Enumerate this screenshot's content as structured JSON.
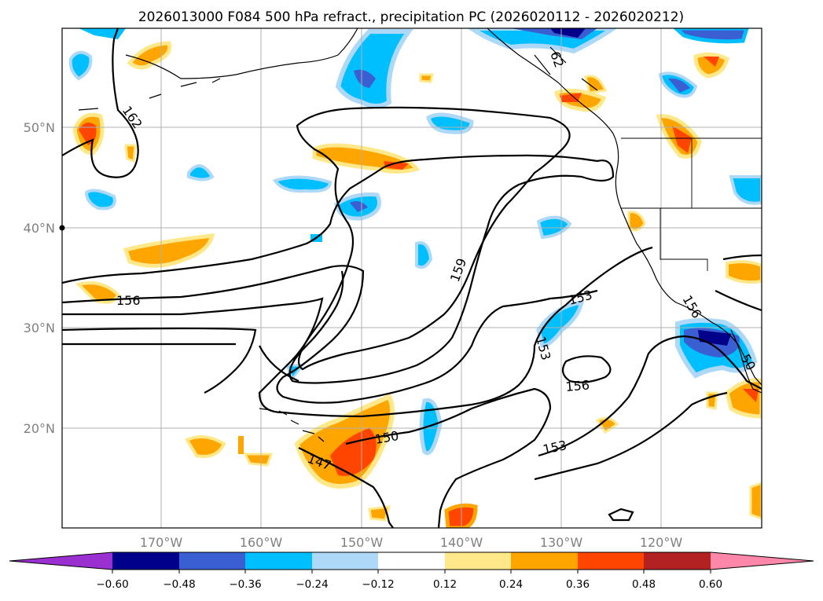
{
  "title": "2026013000 F084 500 hPa refract., precipitation PC (2026020112 - 2026020212)",
  "map": {
    "lat_labels": [
      "50°N",
      "40°N",
      "30°N",
      "20°N"
    ],
    "lon_labels": [
      "170°W",
      "160°W",
      "150°W",
      "140°W",
      "130°W",
      "120°W"
    ],
    "contour_labels": [
      "162",
      "156",
      "159",
      "153",
      "153",
      "156",
      "150",
      "147",
      "153",
      "62",
      "156",
      "50"
    ]
  },
  "colorbar": {
    "colors": [
      "#9b30d0",
      "#00008b",
      "#3a5fd2",
      "#00bfff",
      "#add8f8",
      "#ffffff",
      "#ffe88a",
      "#ffa500",
      "#ff4500",
      "#b22222",
      "#ff88aa"
    ],
    "tick_labels": [
      "−0.60",
      "−0.48",
      "−0.36",
      "−0.24",
      "−0.12",
      "0.12",
      "0.24",
      "0.36",
      "0.48",
      "0.60"
    ]
  }
}
